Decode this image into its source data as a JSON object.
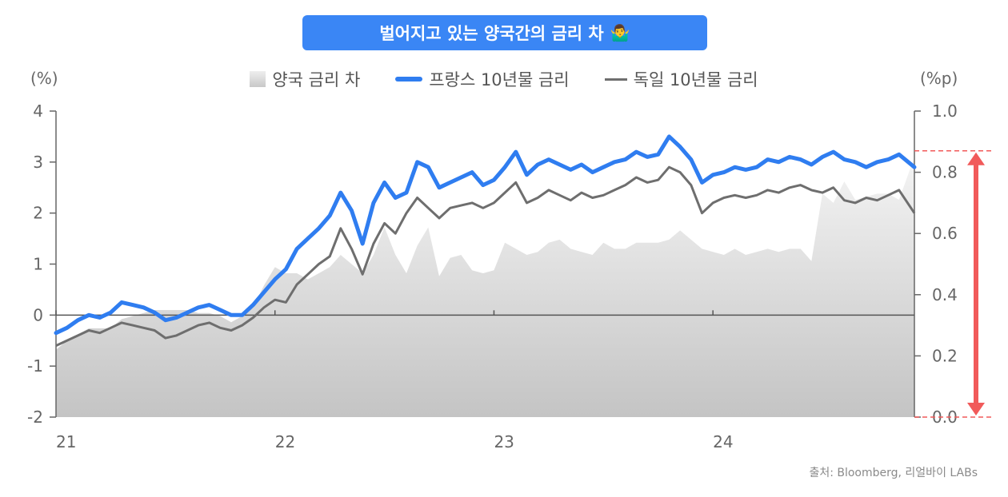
{
  "title": "벌어지고 있는 양국간의 금리 차",
  "title_emoji": "🤷‍♂️",
  "left_unit": "(%)",
  "right_unit": "(%p)",
  "legend": [
    {
      "label": "양국 금리 차",
      "kind": "area"
    },
    {
      "label": "프랑스 10년물 금리",
      "kind": "blue-line"
    },
    {
      "label": "독일 10년물 금리",
      "kind": "gray-line"
    }
  ],
  "source": "출처: Bloomberg, 리얼바이 LABs",
  "colors": {
    "france": "#2f7df0",
    "germany": "#6e6e6e",
    "spread_top": "#f2f2f2",
    "spread_bottom": "#c6c6c6",
    "arrow": "#f15a5a",
    "title_bg": "#3a86f5"
  },
  "chart_data": {
    "type": "line",
    "x_ticks": [
      "21",
      "22",
      "23",
      "24"
    ],
    "x_tick_years": [
      2021.0,
      2022.0,
      2023.0,
      2024.0
    ],
    "x_range": [
      2021.0,
      2024.92
    ],
    "y_left": {
      "ticks": [
        "4",
        "3",
        "2",
        "1",
        "0",
        "-1",
        "-2"
      ],
      "ylim": [
        -2,
        4
      ]
    },
    "y_right": {
      "ticks": [
        "1.0",
        "0.8",
        "0.6",
        "0.4",
        "0.2",
        "0.0"
      ],
      "ylim": [
        0,
        1.0
      ]
    },
    "x": [
      2021.0,
      2021.05,
      2021.1,
      2021.15,
      2021.2,
      2021.25,
      2021.3,
      2021.35,
      2021.4,
      2021.45,
      2021.5,
      2021.55,
      2021.6,
      2021.65,
      2021.7,
      2021.75,
      2021.8,
      2021.85,
      2021.9,
      2021.95,
      2022.0,
      2022.05,
      2022.1,
      2022.15,
      2022.2,
      2022.25,
      2022.3,
      2022.35,
      2022.4,
      2022.45,
      2022.5,
      2022.55,
      2022.6,
      2022.65,
      2022.7,
      2022.75,
      2022.8,
      2022.85,
      2022.9,
      2022.95,
      2023.0,
      2023.05,
      2023.1,
      2023.15,
      2023.2,
      2023.25,
      2023.3,
      2023.35,
      2023.4,
      2023.45,
      2023.5,
      2023.55,
      2023.6,
      2023.65,
      2023.7,
      2023.75,
      2023.8,
      2023.85,
      2023.9,
      2023.95,
      2024.0,
      2024.05,
      2024.1,
      2024.15,
      2024.2,
      2024.25,
      2024.3,
      2024.35,
      2024.4,
      2024.45,
      2024.5,
      2024.55,
      2024.6,
      2024.65,
      2024.7,
      2024.75,
      2024.8,
      2024.85,
      2024.92
    ],
    "series": [
      {
        "name": "프랑스 10년물 금리",
        "axis": "left",
        "values": [
          -0.35,
          -0.25,
          -0.1,
          0.0,
          -0.05,
          0.05,
          0.25,
          0.2,
          0.15,
          0.05,
          -0.1,
          -0.05,
          0.05,
          0.15,
          0.2,
          0.1,
          0.0,
          0.0,
          0.2,
          0.45,
          0.7,
          0.9,
          1.3,
          1.5,
          1.7,
          1.95,
          2.4,
          2.05,
          1.4,
          2.2,
          2.6,
          2.3,
          2.4,
          3.0,
          2.9,
          2.5,
          2.6,
          2.7,
          2.8,
          2.55,
          2.65,
          2.9,
          3.2,
          2.75,
          2.95,
          3.05,
          2.95,
          2.85,
          2.95,
          2.8,
          2.9,
          3.0,
          3.05,
          3.2,
          3.1,
          3.15,
          3.5,
          3.3,
          3.05,
          2.6,
          2.75,
          2.8,
          2.9,
          2.85,
          2.9,
          3.05,
          3.0,
          3.1,
          3.05,
          2.95,
          3.1,
          3.2,
          3.05,
          3.0,
          2.9,
          3.0,
          3.05,
          3.15,
          2.9
        ]
      },
      {
        "name": "독일 10년물 금리",
        "axis": "left",
        "values": [
          -0.6,
          -0.5,
          -0.4,
          -0.3,
          -0.35,
          -0.25,
          -0.15,
          -0.2,
          -0.25,
          -0.3,
          -0.45,
          -0.4,
          -0.3,
          -0.2,
          -0.15,
          -0.25,
          -0.3,
          -0.2,
          -0.05,
          0.15,
          0.3,
          0.25,
          0.6,
          0.8,
          1.0,
          1.15,
          1.7,
          1.3,
          0.8,
          1.4,
          1.8,
          1.6,
          2.0,
          2.3,
          2.1,
          1.9,
          2.1,
          2.15,
          2.2,
          2.1,
          2.2,
          2.4,
          2.6,
          2.2,
          2.3,
          2.45,
          2.35,
          2.25,
          2.4,
          2.3,
          2.35,
          2.45,
          2.55,
          2.7,
          2.6,
          2.65,
          2.9,
          2.8,
          2.55,
          2.0,
          2.2,
          2.3,
          2.35,
          2.3,
          2.35,
          2.45,
          2.4,
          2.5,
          2.55,
          2.45,
          2.4,
          2.5,
          2.25,
          2.2,
          2.3,
          2.25,
          2.35,
          2.45,
          2.0
        ]
      },
      {
        "name": "양국 금리 차",
        "axis": "right",
        "values": [
          0.22,
          0.25,
          0.27,
          0.29,
          0.29,
          0.29,
          0.32,
          0.33,
          0.34,
          0.35,
          0.35,
          0.35,
          0.35,
          0.34,
          0.34,
          0.33,
          0.31,
          0.33,
          0.36,
          0.43,
          0.49,
          0.47,
          0.47,
          0.45,
          0.47,
          0.49,
          0.53,
          0.5,
          0.47,
          0.53,
          0.62,
          0.53,
          0.47,
          0.56,
          0.62,
          0.46,
          0.52,
          0.53,
          0.48,
          0.47,
          0.48,
          0.57,
          0.55,
          0.53,
          0.54,
          0.57,
          0.58,
          0.55,
          0.54,
          0.53,
          0.57,
          0.55,
          0.55,
          0.57,
          0.57,
          0.57,
          0.58,
          0.61,
          0.58,
          0.55,
          0.54,
          0.53,
          0.55,
          0.53,
          0.54,
          0.55,
          0.54,
          0.55,
          0.55,
          0.51,
          0.73,
          0.7,
          0.77,
          0.71,
          0.72,
          0.73,
          0.73,
          0.71,
          0.85
        ]
      }
    ],
    "annotation": {
      "type": "double-arrow",
      "axis": "right",
      "from": 0.0,
      "to": 0.87
    }
  }
}
